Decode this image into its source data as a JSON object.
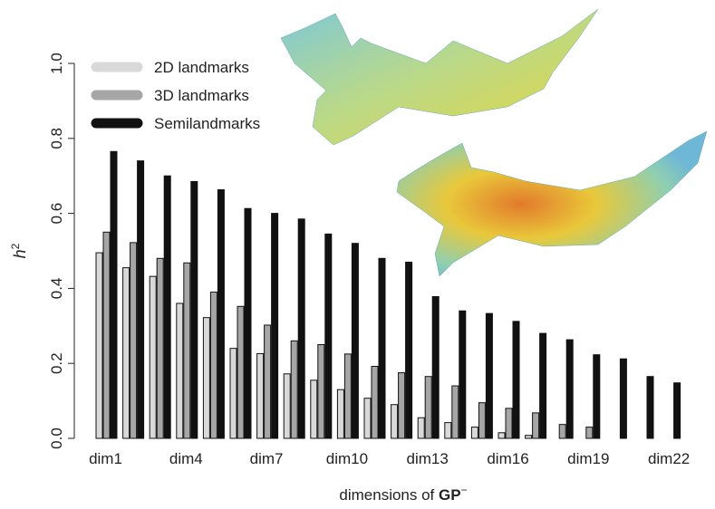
{
  "chart_data": {
    "type": "bar",
    "y_label": {
      "text": "h",
      "superscript": "2"
    },
    "x_label": {
      "text": "dimensions of",
      "bold": "GP",
      "superscript": "−"
    },
    "categories": [
      "dim1",
      null,
      null,
      "dim4",
      null,
      null,
      "dim7",
      null,
      null,
      "dim10",
      null,
      null,
      "dim13",
      null,
      null,
      "dim16",
      null,
      null,
      "dim19",
      null,
      null,
      "dim22"
    ],
    "series": [
      {
        "name": "2D landmarks",
        "color": "#d9d9d9",
        "values": [
          0.495,
          0.455,
          0.432,
          0.36,
          0.322,
          0.24,
          0.226,
          0.172,
          0.155,
          0.13,
          0.107,
          0.09,
          0.055,
          0.042,
          0.03,
          0.015,
          0.008,
          0,
          0,
          0,
          0,
          0
        ]
      },
      {
        "name": "3D landmarks",
        "color": "#a6a6a6",
        "values": [
          0.55,
          0.522,
          0.48,
          0.468,
          0.39,
          0.352,
          0.302,
          0.26,
          0.25,
          0.225,
          0.192,
          0.175,
          0.165,
          0.14,
          0.095,
          0.08,
          0.068,
          0.037,
          0.03,
          0,
          0,
          0
        ]
      },
      {
        "name": "Semilandmarks",
        "color": "#111111",
        "values": [
          0.765,
          0.74,
          0.7,
          0.685,
          0.663,
          0.613,
          0.6,
          0.585,
          0.545,
          0.52,
          0.48,
          0.47,
          0.378,
          0.34,
          0.333,
          0.312,
          0.28,
          0.263,
          0.223,
          0.212,
          0.165,
          0.148
        ]
      }
    ],
    "ylim": [
      0,
      1
    ],
    "yticks": [
      {
        "value": 0,
        "label": "0.0"
      },
      {
        "value": 0.2,
        "label": "0.2"
      },
      {
        "value": 0.4,
        "label": "0.4"
      },
      {
        "value": 0.6,
        "label": "0.6"
      },
      {
        "value": 0.8,
        "label": "0.8"
      },
      {
        "value": 1,
        "label": "1.0"
      }
    ]
  }
}
